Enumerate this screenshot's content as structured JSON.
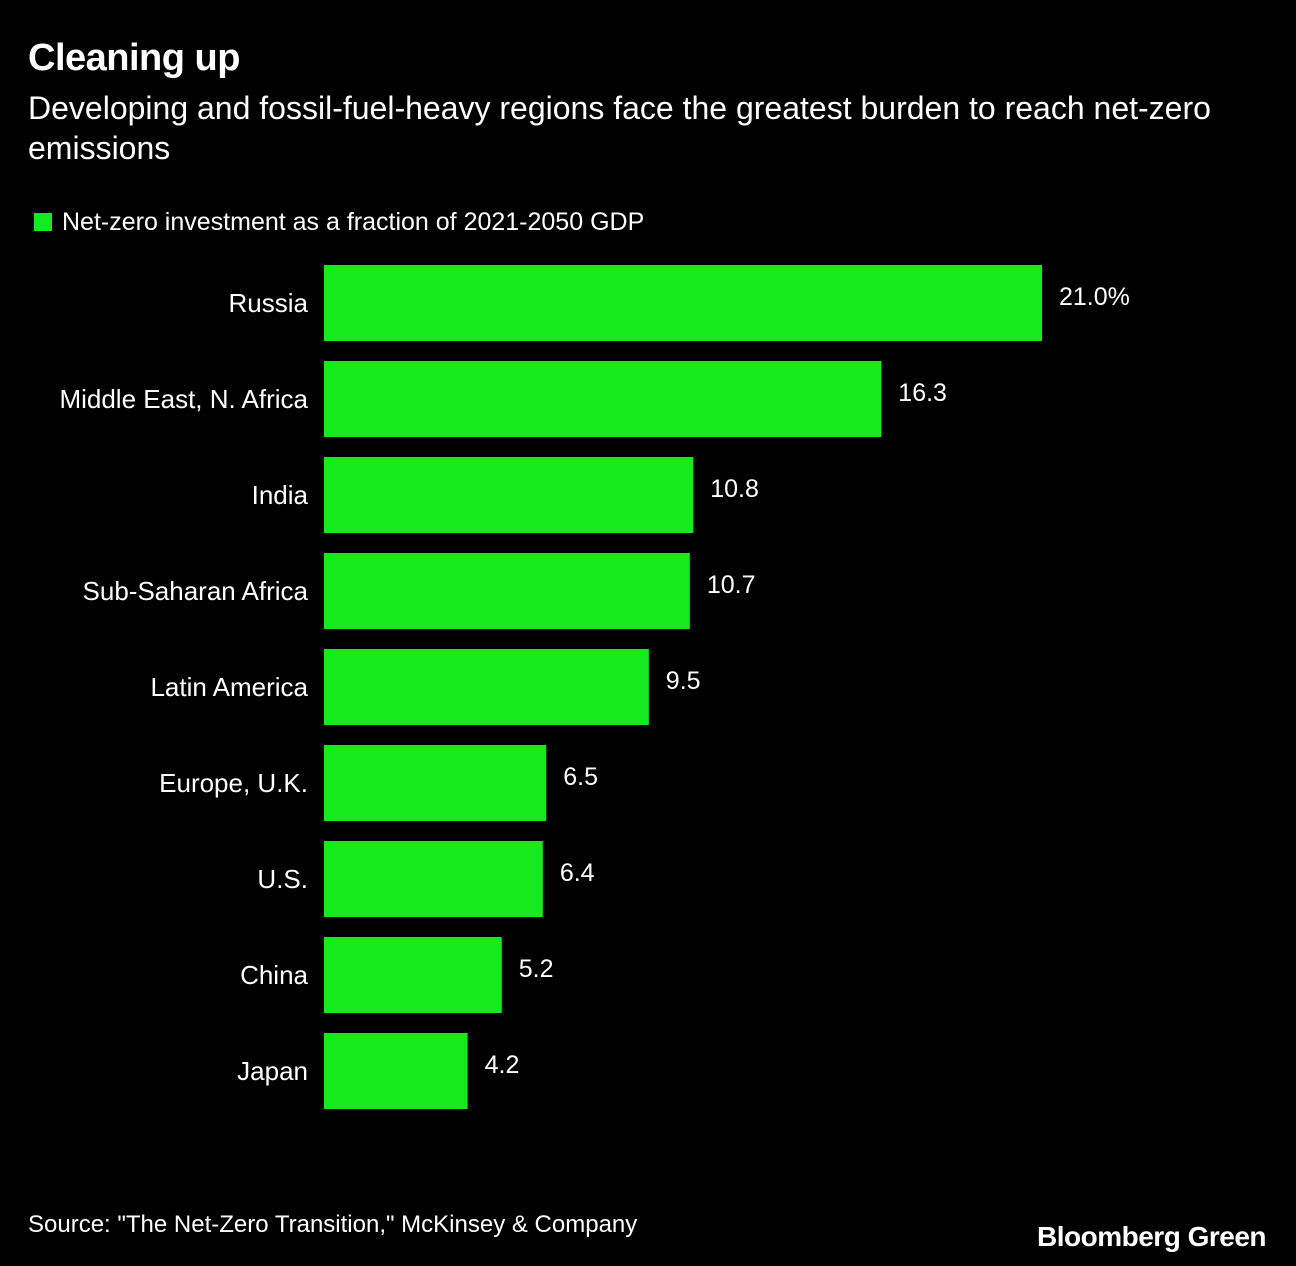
{
  "title": "Cleaning up",
  "subtitle": "Developing and fossil-fuel-heavy regions face the greatest burden to reach net-zero emissions",
  "source": "Source: \"The Net-Zero Transition,\" McKinsey & Company",
  "brand": "Bloomberg Green",
  "colors": {
    "background": "#000000",
    "bar": "#16ea1e",
    "text": "#ffffff"
  },
  "chart_data": {
    "type": "bar",
    "orientation": "horizontal",
    "categories": [
      "Russia",
      "Middle East, N. Africa",
      "India",
      "Sub-Saharan Africa",
      "Latin America",
      "Europe, U.K.",
      "U.S.",
      "China",
      "Japan"
    ],
    "series": [
      {
        "name": "Net-zero investment as a fraction of 2021-2050 GDP",
        "values": [
          21.0,
          16.3,
          10.8,
          10.7,
          9.5,
          6.5,
          6.4,
          5.2,
          4.2
        ]
      }
    ],
    "value_labels": [
      "21.0%",
      "16.3",
      "10.8",
      "10.7",
      "9.5",
      "6.5",
      "6.4",
      "5.2",
      "4.2"
    ],
    "xlim": [
      0,
      21.0
    ],
    "grid": false,
    "legend_position": "top-left"
  }
}
